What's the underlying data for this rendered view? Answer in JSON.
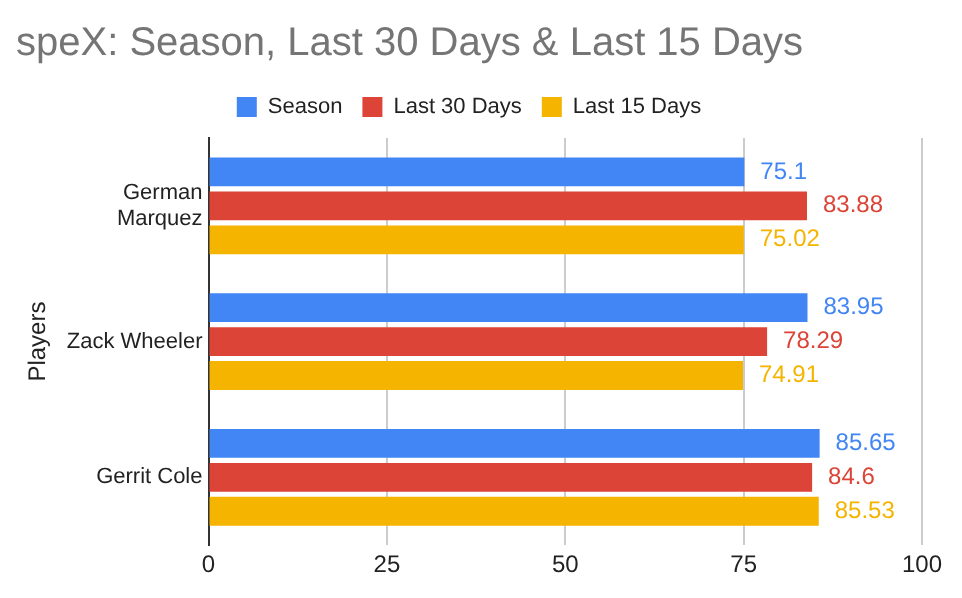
{
  "chart_data": {
    "type": "bar",
    "orientation": "horizontal",
    "title": "speX: Season, Last 30 Days & Last 15 Days",
    "ylabel": "Players",
    "categories": [
      "German Marquez",
      "Zack Wheeler",
      "Gerrit Cole"
    ],
    "series": [
      {
        "name": "Season",
        "color": "#4285f4",
        "values": [
          75.1,
          83.95,
          85.65
        ]
      },
      {
        "name": "Last 30 Days",
        "color": "#db4437",
        "values": [
          83.88,
          78.29,
          84.6
        ]
      },
      {
        "name": "Last 15 Days",
        "color": "#f4b400",
        "values": [
          75.02,
          74.91,
          85.53
        ]
      }
    ],
    "xlim": [
      0,
      100
    ],
    "xticks": [
      0,
      25,
      50,
      75,
      100
    ],
    "grid": "x",
    "legend": "top",
    "data_labels": true
  }
}
